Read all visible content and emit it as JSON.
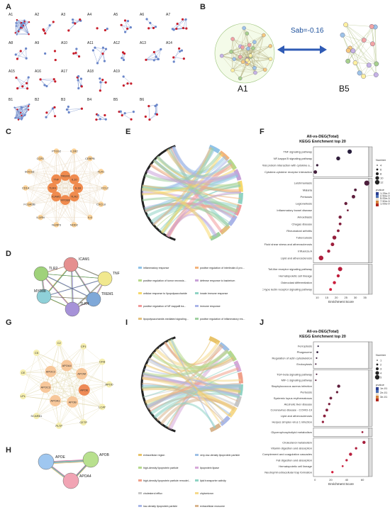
{
  "panels": {
    "A": "A",
    "B": "B",
    "C": "C",
    "D": "D",
    "E": "E",
    "F": "F",
    "G": "G",
    "H": "H",
    "I": "I",
    "J": "J"
  },
  "panel_a_modules": [
    "A1",
    "A2",
    "A3",
    "A4",
    "A5",
    "A6",
    "A7",
    "A8",
    "A9",
    "A10",
    "A11",
    "A12",
    "A13",
    "A14",
    "A15",
    "A16",
    "A17",
    "A18",
    "A19",
    "B1",
    "B2",
    "B3",
    "B4",
    "B5",
    "B6"
  ],
  "panel_b": {
    "sab_text": "Sab=-0.16",
    "left_label": "A1",
    "right_label": "B5"
  },
  "panel_c_nodes": [
    "IL1B",
    "TLR2",
    "MYD88",
    "ICAM1",
    "TLR4",
    "TNF",
    "TREM1",
    "IL10",
    "CCL2",
    "CXCL8",
    "IL6",
    "NOD2",
    "NLRP3",
    "IL1RN",
    "FCGR3B",
    "CD14",
    "SOCS3",
    "CCR1",
    "PTGS2",
    "IL1R2",
    "CEBPB",
    "TLR1"
  ],
  "panel_d_nodes": [
    "ICAM1",
    "TLR2",
    "TNF",
    "MYD88",
    "TREM1",
    "TLR4"
  ],
  "panel_g_nodes": [
    "APOE",
    "APOB",
    "APOA1",
    "APOC3",
    "APOC2",
    "APOA4",
    "APOM",
    "APOD",
    "LCAT",
    "CETP",
    "PLTP",
    "SCARB1",
    "LPL",
    "CE",
    "C5",
    "C2",
    "CP1",
    "CFB"
  ],
  "panel_h_nodes": [
    "APOE",
    "APOB",
    "APOA4"
  ],
  "panel_f": {
    "title1": "All-vs-DEG(Total)",
    "title2": "KEGG Enrichment top 20",
    "xlabel": "Enrichment Score",
    "legend_number": "Number",
    "legend_pvalue": "pvalue",
    "terms": [
      "TNF signaling pathway",
      "NF-kappa B signaling pathway",
      "Viral protein interaction with cytokine a...",
      "Cytokine-cytokine receptor interaction",
      "Leishmaniasis",
      "Malaria",
      "Pertussis",
      "Legionellosis",
      "Inflammatory bowel disease",
      "Amoebiasis",
      "Chagas disease",
      "Rheumatoid arthritis",
      "Tuberculosis",
      "Fluid shear stress and atherosclerosis",
      "Influenza A",
      "Lipid and atherosclerosis",
      "Toll-like receptor signaling pathway",
      "Hematopoietic cell lineage",
      "Osteoclast differentiation",
      "C-type lectin receptor signaling pathway"
    ],
    "scores": [
      27,
      21,
      10,
      9,
      36,
      30,
      29,
      25,
      26,
      22,
      22,
      21,
      19,
      18,
      16,
      12,
      22,
      21,
      19,
      17
    ],
    "sizes": [
      8,
      7,
      3,
      6,
      10,
      4,
      6,
      5,
      2,
      5,
      4,
      4,
      7,
      6,
      5,
      9,
      8,
      5,
      5,
      4
    ],
    "xticks": [
      "10",
      "15",
      "20",
      "25",
      "30",
      "35"
    ],
    "number_legend": [
      "4",
      "6",
      "8",
      "10",
      "12"
    ],
    "pvalue_legend": [
      "1.25e-07",
      "2.50e-07",
      "5.00e-08",
      "7.50e-08",
      "1.00e-07"
    ]
  },
  "panel_j": {
    "title1": "All-vs-DEG(Total)",
    "title2": "KEGG Enrichment top 20",
    "xlabel": "Enrichment Score",
    "legend_number": "Number",
    "legend_pvalue": "pvalue",
    "terms": [
      "Ferroptosis",
      "Phagosome",
      "Regulation of actin cytoskeleton",
      "Endocytosis",
      "TGF-beta signaling pathway",
      "MIF-1 signaling pathway",
      "Staphylococcus aureus infection",
      "Pertussis",
      "Systemic lupus erythematosus",
      "Alcoholic liver disease",
      "Coronavirus disease - COVID-19",
      "Lipid and atherosclerosis",
      "Herpes simplex virus 1 infection",
      "Glycerophospholipid metabolism",
      "Cholesterol metabolism",
      "Vitamin digestion and absorption",
      "Complement and coagulation cascades",
      "Fat digestion and absorption",
      "Hematopoietic cell lineage",
      "Neutrophil extracellular trap formation"
    ],
    "scores": [
      4,
      3,
      2,
      1,
      2,
      1,
      30,
      28,
      20,
      18,
      15,
      12,
      10,
      60,
      62,
      52,
      45,
      40,
      35,
      22
    ],
    "sizes": [
      1,
      2,
      1,
      1,
      1,
      1,
      5,
      3,
      4,
      3,
      4,
      4,
      3,
      2,
      5,
      3,
      5,
      3,
      2,
      3
    ],
    "xticks": [
      "0",
      "20",
      "40",
      "60"
    ],
    "number_legend": [
      "1",
      "2",
      "3",
      "4",
      "5"
    ],
    "pvalue_legend": [
      "1e-01",
      "2e-01",
      "3e-01"
    ]
  },
  "panel_e_legend": [
    "inflammatory response",
    "positive regulation of interleukin-6 pro...",
    "positive regulation of tumor necrosis...",
    "defense response to bacterium",
    "cellular response to lipopolysaccharide",
    "innate immune response",
    "positive regulation of NF-kappaB tra...",
    "immune response",
    "lipopolysaccharide-mediated signaling...",
    "positive regulation of inflammatory res..."
  ],
  "panel_i_legend": [
    "extracellular region",
    "very-low-density lipoprotein particle",
    "high-density lipoprotein particle",
    "lipoprotein lipase",
    "high-density lipoprotein particle remodel...",
    "lipid transporter activity",
    "cholesterol efflux",
    "chylomicron",
    "low-density lipoprotein particle",
    "extracellular exosome"
  ]
}
